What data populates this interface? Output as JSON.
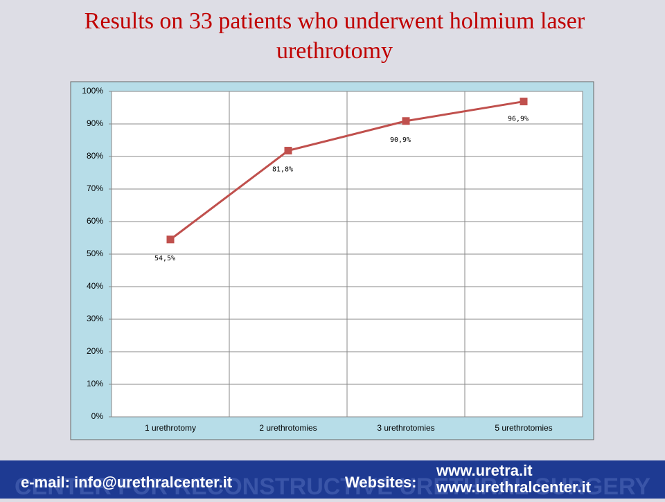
{
  "chart_data": {
    "type": "line",
    "title": "Results on 33 patients who underwent holmium laser urethrotomy",
    "categories": [
      "1 urethrotomy",
      "2 urethrotomies",
      "3 urethrotomies",
      "5 urethrotomies"
    ],
    "values": [
      54.5,
      81.8,
      90.9,
      96.9
    ],
    "value_labels": [
      "54,5%",
      "81,8%",
      "90,9%",
      "96,9%"
    ],
    "color": "#c0504d",
    "ylim": [
      0,
      100
    ],
    "yticks": [
      {
        "value": 0,
        "label": "0%"
      },
      {
        "value": 10,
        "label": "10%"
      },
      {
        "value": 20,
        "label": "20%"
      },
      {
        "value": 30,
        "label": "30%"
      },
      {
        "value": 40,
        "label": "40%"
      },
      {
        "value": 50,
        "label": "50%"
      },
      {
        "value": 60,
        "label": "60%"
      },
      {
        "value": 70,
        "label": "70%"
      },
      {
        "value": 80,
        "label": "80%"
      },
      {
        "value": 90,
        "label": "90%"
      },
      {
        "value": 100,
        "label": "100%"
      }
    ],
    "grid": true
  },
  "footer": {
    "watermark": "CENTER FOR RECONSTRUCTIVE URETHRAL SURGERY",
    "email": "e-mail: info@urethralcenter.it",
    "websites_label": "Websites:",
    "websites": [
      "www.uretra.it",
      "www.urethralcenter.it"
    ]
  }
}
